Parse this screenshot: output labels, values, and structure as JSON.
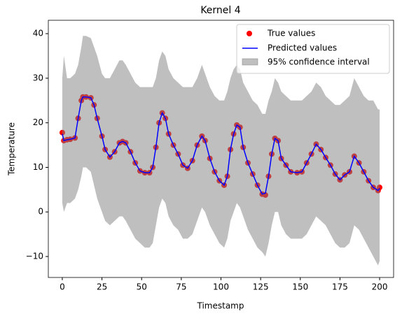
{
  "chart_data": {
    "type": "scatter-line-interval",
    "title": "Kernel 4",
    "x_label": "Timestamp",
    "y_label": "Temperature",
    "x": [
      0,
      1,
      3,
      5,
      8,
      10,
      12,
      13,
      15,
      18,
      20,
      22,
      25,
      27,
      30,
      33,
      36,
      38,
      40,
      43,
      46,
      49,
      52,
      55,
      57,
      59,
      61,
      63,
      65,
      67,
      70,
      73,
      76,
      79,
      82,
      85,
      88,
      90,
      93,
      96,
      99,
      102,
      104,
      106,
      108,
      110,
      112,
      114,
      117,
      120,
      123,
      126,
      128,
      130,
      132,
      134,
      136,
      138,
      141,
      144,
      148,
      151,
      154,
      157,
      160,
      163,
      166,
      169,
      172,
      175,
      178,
      181,
      184,
      187,
      190,
      193,
      196,
      199,
      200
    ],
    "series": [
      {
        "name": "True values",
        "color": "#ff0000",
        "values": [
          17.8,
          16,
          16.2,
          16.3,
          16.6,
          21,
          25,
          25.8,
          25.8,
          25.6,
          24,
          21,
          17,
          14,
          12.3,
          13.5,
          15.5,
          15.8,
          15.5,
          13.5,
          11,
          9.2,
          8.8,
          8.8,
          10,
          14.5,
          20,
          22.2,
          21,
          17.5,
          15,
          13,
          10.5,
          9.8,
          11.5,
          15,
          17,
          16,
          12,
          9,
          7,
          6,
          8,
          14,
          17.5,
          19.5,
          19,
          14.5,
          11,
          8.5,
          6,
          4,
          3.8,
          8,
          13,
          16.5,
          16,
          12,
          10.5,
          9,
          8.8,
          9,
          11,
          13,
          15.2,
          14,
          12.2,
          10.5,
          8.5,
          7.2,
          8.3,
          9,
          12.5,
          11,
          9,
          7,
          5.5,
          4.8,
          5.5
        ]
      },
      {
        "name": "Predicted values",
        "color": "#0000ff",
        "values": [
          17.5,
          16,
          16.2,
          16.3,
          16.6,
          21,
          25,
          25.8,
          25.8,
          25.6,
          24,
          21,
          17,
          14,
          12.3,
          13.5,
          15.5,
          15.8,
          15.5,
          13.5,
          11,
          9.2,
          8.8,
          8.8,
          10,
          14.5,
          20,
          22.2,
          21,
          17.5,
          15,
          13,
          10.5,
          9.8,
          11.5,
          15,
          17,
          16,
          12,
          9,
          7,
          6,
          8,
          14,
          17.5,
          19.5,
          19,
          14.5,
          11,
          8.5,
          6,
          4,
          4.2,
          8,
          13,
          16.5,
          16,
          12,
          10.5,
          9,
          8.8,
          9,
          11,
          13,
          15.2,
          14,
          12.2,
          10.5,
          8.5,
          7.2,
          8.3,
          9,
          12.5,
          11,
          9,
          7,
          5.5,
          4.8,
          5.3
        ]
      }
    ],
    "interval": {
      "name": "95% confidence interval",
      "color": "#808080",
      "upper": [
        30,
        35,
        30,
        30,
        31,
        33,
        37,
        39.5,
        39.5,
        39,
        37,
        35,
        31,
        30,
        30,
        32,
        34,
        34,
        33,
        31,
        29,
        28,
        28,
        28,
        28,
        30,
        34,
        36,
        35,
        32,
        30,
        29,
        28,
        28,
        28,
        30,
        33,
        31,
        28,
        26,
        25,
        25,
        27,
        30,
        32,
        33,
        32,
        29,
        27,
        25,
        24,
        22,
        22,
        25,
        27,
        30,
        29,
        27,
        26,
        25,
        25,
        25,
        26,
        27,
        29,
        28,
        26,
        25,
        24,
        24,
        25,
        26,
        30,
        28,
        26,
        25,
        25,
        23,
        23
      ],
      "lower": [
        2,
        0,
        2,
        2,
        3,
        5,
        8,
        10,
        10,
        9,
        6,
        3,
        0,
        -2,
        -3,
        -2,
        -1,
        -1,
        -2,
        -4,
        -6,
        -7,
        -8,
        -8,
        -7,
        -3,
        1,
        3,
        2,
        -1,
        -3,
        -4,
        -6,
        -6,
        -5,
        -2,
        1,
        0,
        -3,
        -5,
        -7,
        -8,
        -6,
        -2,
        0,
        2,
        1,
        -1,
        -4,
        -6,
        -8,
        -9,
        -10,
        -7,
        -3,
        0,
        0,
        -3,
        -5,
        -6,
        -6,
        -6,
        -5,
        -3,
        -1,
        -2,
        -3,
        -5,
        -7,
        -8,
        -8,
        -7,
        -3,
        -4,
        -6,
        -8,
        -10,
        -12,
        -11
      ]
    },
    "xlim": [
      -8.8,
      208.8
    ],
    "ylim": [
      -14.7,
      43
    ],
    "xticks": [
      0,
      25,
      50,
      75,
      100,
      125,
      150,
      175,
      200
    ],
    "yticks": [
      {
        "value": -10,
        "label": "−10"
      },
      0,
      10,
      20,
      30,
      40
    ],
    "legend": "upper right"
  }
}
